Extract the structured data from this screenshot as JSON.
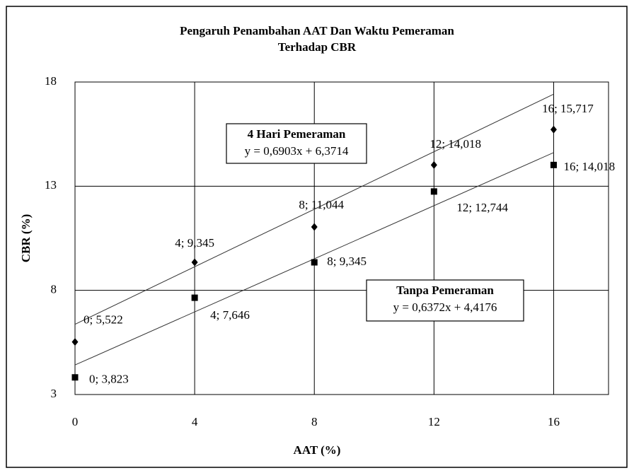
{
  "chart_data": {
    "type": "scatter",
    "title": [
      "Pengaruh Penambahan AAT Dan Waktu Pemeraman",
      "Terhadap CBR"
    ],
    "x_label": "AAT (%)",
    "y_label": "CBR (%)",
    "xlim": [
      0,
      18
    ],
    "xticks": [
      0,
      4,
      8,
      12,
      16
    ],
    "ylim": [
      3,
      18
    ],
    "yticks": [
      3,
      8,
      13,
      18
    ],
    "grid": true,
    "series": [
      {
        "name": "4 Hari Pemeraman",
        "marker": "diamond",
        "color": "#000000",
        "x": [
          0,
          4,
          8,
          12,
          16
        ],
        "values": [
          5.522,
          9.345,
          11.044,
          14.018,
          15.717
        ],
        "value_labels": [
          "0; 5,522",
          "4; 9,345",
          "8; 11,044",
          "12; 14,018",
          "16; 15,717"
        ],
        "trendline": {
          "slope": 0.6903,
          "intercept": 6.3714,
          "label": "y = 0,6903x + 6,3714"
        }
      },
      {
        "name": "Tanpa Pemeraman",
        "marker": "square",
        "color": "#000000",
        "x": [
          0,
          4,
          8,
          12,
          16
        ],
        "values": [
          3.823,
          7.646,
          9.345,
          12.744,
          14.018
        ],
        "value_labels": [
          "0; 3,823",
          "4; 7,646",
          "8; 9,345",
          "12; 12,744",
          "16; 14,018"
        ],
        "trendline": {
          "slope": 0.6372,
          "intercept": 4.4176,
          "label": "y = 0,6372x + 4,4176"
        }
      }
    ]
  }
}
